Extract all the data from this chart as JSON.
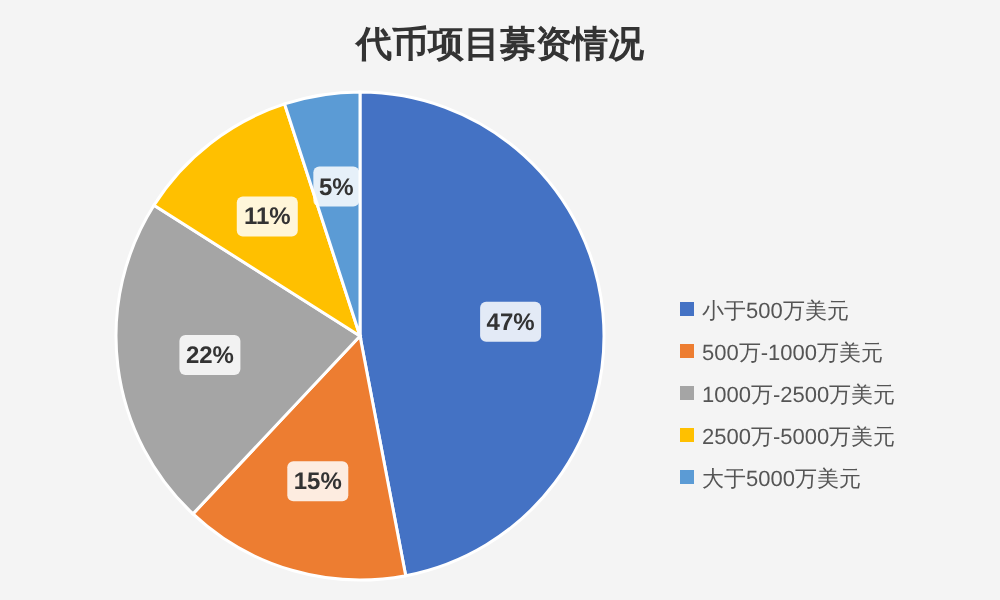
{
  "chart_data": {
    "type": "pie",
    "title": "代币项目募资情况",
    "categories": [
      "小于500万美元",
      "500万-1000万美元",
      "1000万-2500万美元",
      "2500万-5000万美元",
      "大于5000万美元"
    ],
    "values": [
      47,
      15,
      22,
      11,
      5
    ],
    "colors": [
      "#4472c4",
      "#ed7d31",
      "#a5a5a5",
      "#ffc000",
      "#5b9bd5"
    ],
    "value_labels": [
      "47%",
      "15%",
      "22%",
      "11%",
      "5%"
    ],
    "legend": "right"
  }
}
